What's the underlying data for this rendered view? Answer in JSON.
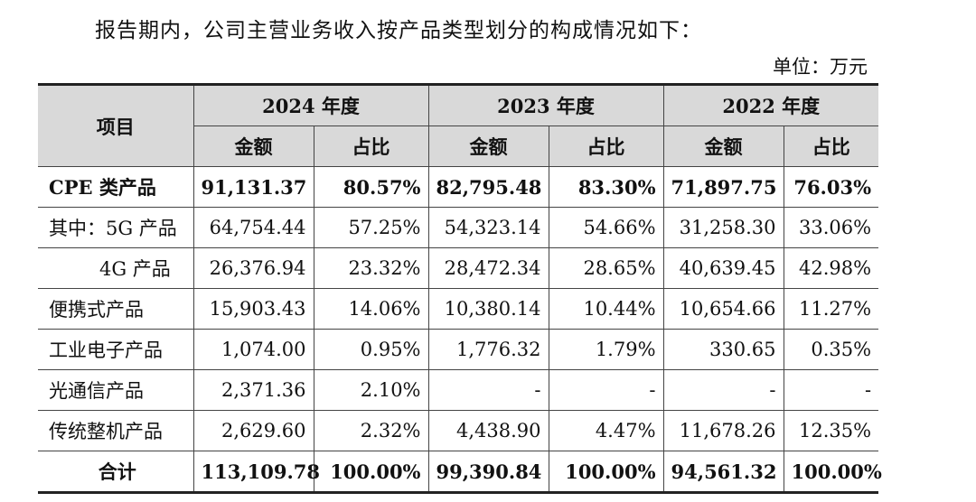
{
  "intro": "报告期内，公司主营业务收入按产品类型划分的构成情况如下：",
  "unit": "单位：万元",
  "table": {
    "item_header": "项目",
    "years": [
      "2024 年度",
      "2023 年度",
      "2022 年度"
    ],
    "sub_headers": [
      "金额",
      "占比",
      "金额",
      "占比",
      "金额",
      "占比"
    ],
    "rows": [
      {
        "label": "CPE 类产品",
        "cells": [
          "91,131.37",
          "80.57%",
          "82,795.48",
          "83.30%",
          "71,897.75",
          "76.03%"
        ]
      },
      {
        "label": "其中：5G 产品",
        "cells": [
          "64,754.44",
          "57.25%",
          "54,323.14",
          "54.66%",
          "31,258.30",
          "33.06%"
        ]
      },
      {
        "label": "4G 产品",
        "cells": [
          "26,376.94",
          "23.32%",
          "28,472.34",
          "28.65%",
          "40,639.45",
          "42.98%"
        ]
      },
      {
        "label": "便携式产品",
        "cells": [
          "15,903.43",
          "14.06%",
          "10,380.14",
          "10.44%",
          "10,654.66",
          "11.27%"
        ]
      },
      {
        "label": "工业电子产品",
        "cells": [
          "1,074.00",
          "0.95%",
          "1,776.32",
          "1.79%",
          "330.65",
          "0.35%"
        ]
      },
      {
        "label": "光通信产品",
        "cells": [
          "2,371.36",
          "2.10%",
          "-",
          "-",
          "-",
          "-"
        ]
      },
      {
        "label": "传统整机产品",
        "cells": [
          "2,629.60",
          "2.32%",
          "4,438.90",
          "4.47%",
          "11,678.26",
          "12.35%"
        ]
      },
      {
        "label": "合计",
        "cells": [
          "113,109.78",
          "100.00%",
          "99,390.84",
          "100.00%",
          "94,561.32",
          "100.00%"
        ]
      }
    ]
  }
}
